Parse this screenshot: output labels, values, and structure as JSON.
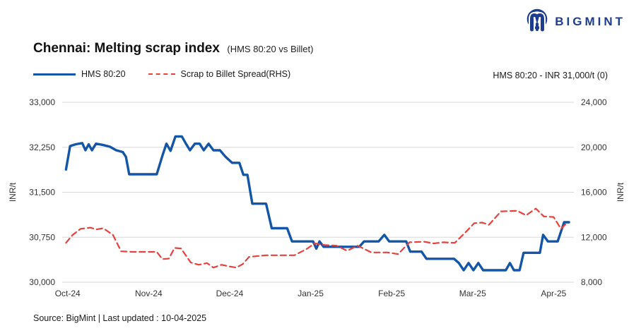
{
  "logo": {
    "text": "BIGMINT",
    "color": "#1d3e8f"
  },
  "title": {
    "main": "Chennai: Melting scrap index",
    "sub": "(HMS 80:20 vs Billet)"
  },
  "legend": [
    {
      "label": "HMS 80:20",
      "color": "#1355a6",
      "style": "solid"
    },
    {
      "label": "Scrap to Billet Spread(RHS)",
      "color": "#e8403c",
      "style": "dashed"
    }
  ],
  "annotation": "HMS 80:20 - INR 31,000/t (0)",
  "source": "Source: BigMint | Last updated : 10-04-2025",
  "chart_data": {
    "type": "line",
    "grid": "horizontal-only",
    "grid_color": "#d8d8d8",
    "x_categories": [
      "Oct-24",
      "Nov-24",
      "Dec-24",
      "Jan-25",
      "Feb-25",
      "Mar-25",
      "Apr-25"
    ],
    "x_domain": [
      -0.05,
      6.25
    ],
    "left_axis": {
      "label": "INR/t",
      "min": 30000,
      "max": 33000,
      "ticks": [
        "33,000",
        "32,250",
        "31,500",
        "30,750",
        "30,000"
      ]
    },
    "right_axis": {
      "label": "INR/t",
      "min": 8000,
      "max": 24000,
      "ticks": [
        "24,000",
        "20,000",
        "16,000",
        "12,000",
        "8,000"
      ]
    },
    "series": [
      {
        "name": "HMS 80:20",
        "axis": "left",
        "color": "#1355a6",
        "dash": false,
        "width": 3.4,
        "points": [
          [
            -0.02,
            31880
          ],
          [
            0.03,
            32270
          ],
          [
            0.1,
            32300
          ],
          [
            0.18,
            32320
          ],
          [
            0.22,
            32200
          ],
          [
            0.26,
            32300
          ],
          [
            0.3,
            32200
          ],
          [
            0.35,
            32310
          ],
          [
            0.43,
            32290
          ],
          [
            0.52,
            32260
          ],
          [
            0.6,
            32200
          ],
          [
            0.68,
            32170
          ],
          [
            0.72,
            32090
          ],
          [
            0.76,
            31800
          ],
          [
            1.1,
            31800
          ],
          [
            1.17,
            32110
          ],
          [
            1.22,
            32310
          ],
          [
            1.27,
            32190
          ],
          [
            1.33,
            32430
          ],
          [
            1.41,
            32430
          ],
          [
            1.46,
            32310
          ],
          [
            1.51,
            32200
          ],
          [
            1.57,
            32310
          ],
          [
            1.63,
            32310
          ],
          [
            1.68,
            32200
          ],
          [
            1.74,
            32310
          ],
          [
            1.8,
            32200
          ],
          [
            1.88,
            32200
          ],
          [
            1.95,
            32090
          ],
          [
            2.03,
            31990
          ],
          [
            2.12,
            31990
          ],
          [
            2.17,
            31790
          ],
          [
            2.22,
            31790
          ],
          [
            2.28,
            31310
          ],
          [
            2.45,
            31310
          ],
          [
            2.52,
            30900
          ],
          [
            2.71,
            30900
          ],
          [
            2.77,
            30680
          ],
          [
            3.03,
            30680
          ],
          [
            3.07,
            30560
          ],
          [
            3.11,
            30680
          ],
          [
            3.16,
            30590
          ],
          [
            3.6,
            30590
          ],
          [
            3.66,
            30680
          ],
          [
            3.84,
            30680
          ],
          [
            3.91,
            30790
          ],
          [
            3.97,
            30680
          ],
          [
            4.18,
            30680
          ],
          [
            4.23,
            30510
          ],
          [
            4.37,
            30510
          ],
          [
            4.43,
            30390
          ],
          [
            4.77,
            30390
          ],
          [
            4.83,
            30320
          ],
          [
            4.89,
            30200
          ],
          [
            4.95,
            30320
          ],
          [
            5.01,
            30200
          ],
          [
            5.07,
            30320
          ],
          [
            5.13,
            30200
          ],
          [
            5.41,
            30200
          ],
          [
            5.46,
            30320
          ],
          [
            5.51,
            30200
          ],
          [
            5.58,
            30200
          ],
          [
            5.63,
            30490
          ],
          [
            5.83,
            30490
          ],
          [
            5.87,
            30790
          ],
          [
            5.93,
            30680
          ],
          [
            6.05,
            30680
          ],
          [
            6.13,
            31000
          ],
          [
            6.19,
            31000
          ]
        ]
      },
      {
        "name": "Scrap to Billet Spread(RHS)",
        "axis": "right",
        "color": "#e8403c",
        "dash": true,
        "width": 2.2,
        "points": [
          [
            -0.02,
            11500
          ],
          [
            0.06,
            12200
          ],
          [
            0.16,
            12750
          ],
          [
            0.28,
            12850
          ],
          [
            0.36,
            12700
          ],
          [
            0.44,
            12800
          ],
          [
            0.56,
            12200
          ],
          [
            0.66,
            10750
          ],
          [
            0.8,
            10700
          ],
          [
            1.1,
            10700
          ],
          [
            1.17,
            10050
          ],
          [
            1.25,
            10100
          ],
          [
            1.32,
            11050
          ],
          [
            1.4,
            11000
          ],
          [
            1.52,
            9750
          ],
          [
            1.62,
            9550
          ],
          [
            1.72,
            9700
          ],
          [
            1.8,
            9300
          ],
          [
            1.9,
            9550
          ],
          [
            2.0,
            9400
          ],
          [
            2.08,
            9300
          ],
          [
            2.16,
            9600
          ],
          [
            2.24,
            10250
          ],
          [
            2.45,
            10400
          ],
          [
            2.8,
            10400
          ],
          [
            2.95,
            10950
          ],
          [
            3.05,
            11450
          ],
          [
            3.18,
            11300
          ],
          [
            3.32,
            11250
          ],
          [
            3.45,
            10800
          ],
          [
            3.58,
            11250
          ],
          [
            3.75,
            10650
          ],
          [
            3.95,
            10650
          ],
          [
            4.08,
            10500
          ],
          [
            4.22,
            11550
          ],
          [
            4.4,
            11600
          ],
          [
            4.52,
            11450
          ],
          [
            4.64,
            11550
          ],
          [
            4.78,
            11500
          ],
          [
            4.92,
            12500
          ],
          [
            5.02,
            13250
          ],
          [
            5.12,
            13300
          ],
          [
            5.2,
            13100
          ],
          [
            5.35,
            14300
          ],
          [
            5.55,
            14350
          ],
          [
            5.66,
            13950
          ],
          [
            5.78,
            14550
          ],
          [
            5.88,
            13850
          ],
          [
            6.0,
            13800
          ],
          [
            6.09,
            12750
          ],
          [
            6.17,
            13300
          ]
        ]
      }
    ]
  }
}
